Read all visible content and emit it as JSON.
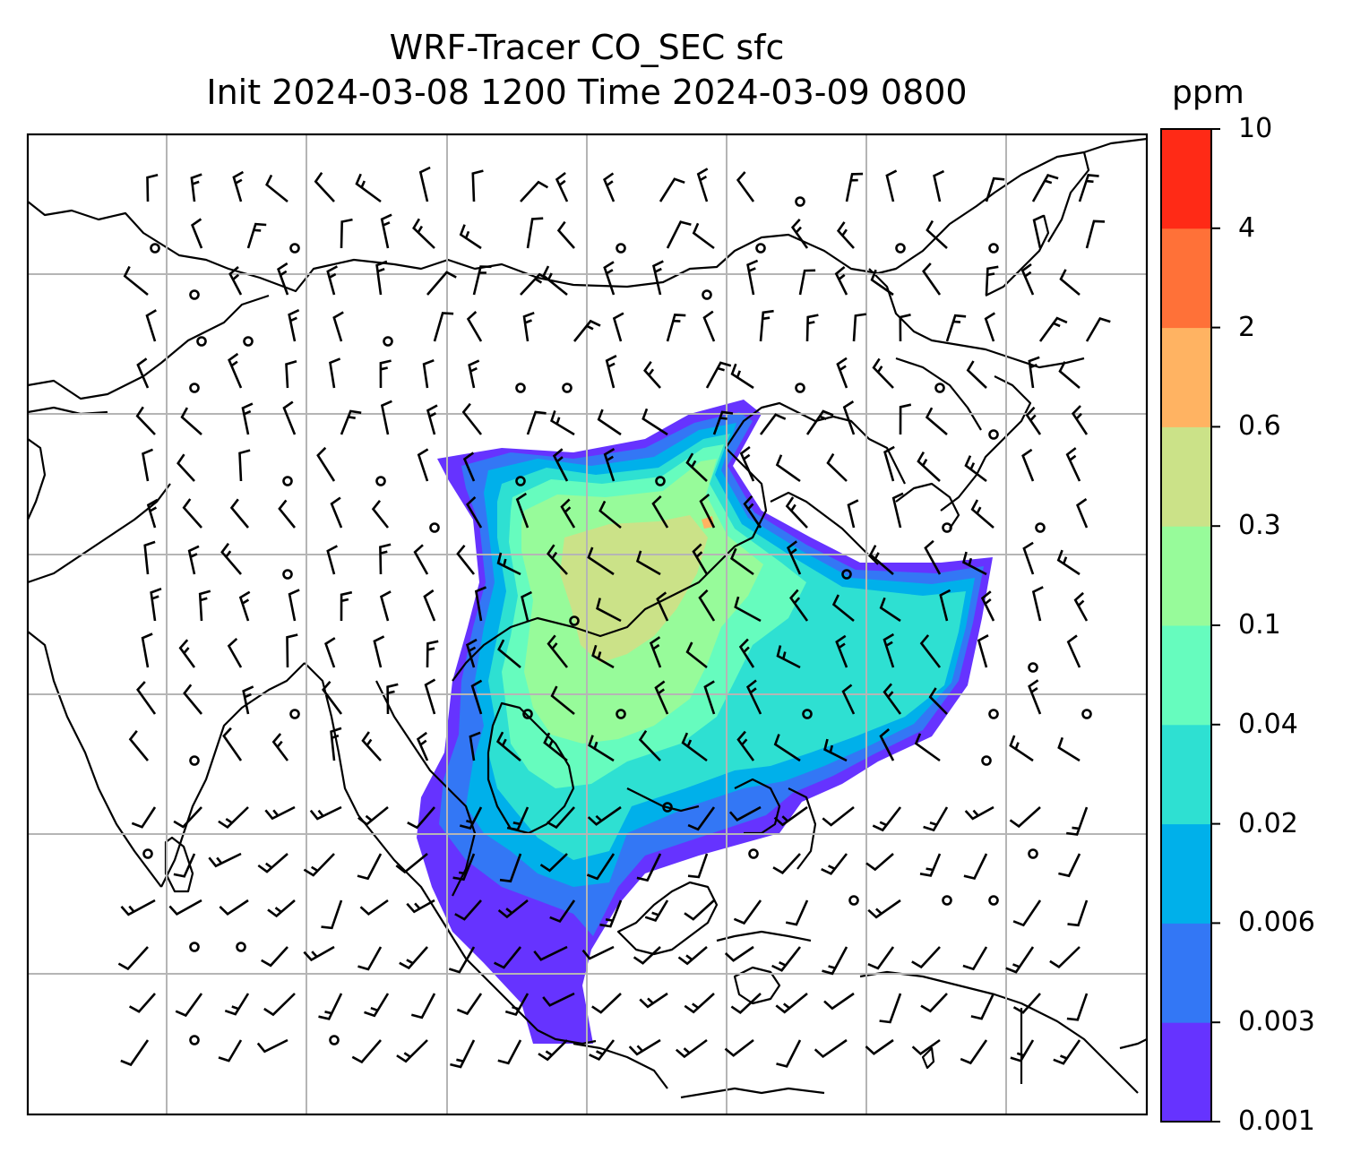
{
  "title": {
    "line1": "WRF-Tracer CO_SEC sfc",
    "line2": "Init 2024-03-08 1200 Time 2024-03-09 0800"
  },
  "colorbar": {
    "unit": "ppm",
    "levels": [
      "0.001",
      "0.003",
      "0.006",
      "0.02",
      "0.04",
      "0.1",
      "0.3",
      "0.6",
      "2",
      "4",
      "10"
    ],
    "colors": [
      "#6633ff",
      "#3377f5",
      "#00b0ea",
      "#2ee0d2",
      "#66fcbe",
      "#97fb9a",
      "#cbe288",
      "#ffb362",
      "#ff7138",
      "#ff2a16"
    ]
  },
  "map": {
    "grid": "on",
    "field": "CO_SEC surface tracer concentration",
    "overlay": "wind barbs"
  }
}
